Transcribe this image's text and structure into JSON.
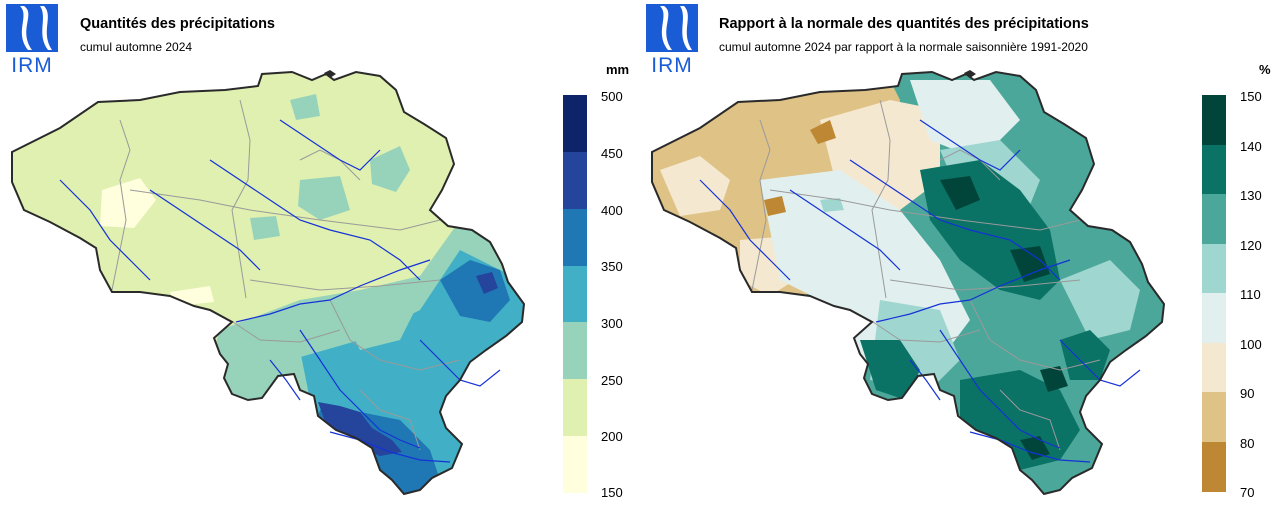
{
  "logo_text": "IRM",
  "left": {
    "title": "Quantités des précipitations",
    "subtitle": "cumul automne 2024",
    "unit": "mm",
    "legend": {
      "ticks": [
        "500",
        "450",
        "400",
        "350",
        "300",
        "250",
        "200",
        "150"
      ],
      "colors": [
        "#0e2468",
        "#25449c",
        "#1f78b4",
        "#41b0c6",
        "#97d3bb",
        "#dff0b0",
        "#ffffdd"
      ]
    }
  },
  "right": {
    "title": "Rapport à la normale des quantités des précipitations",
    "subtitle": "cumul automne 2024 par rapport à la normale saisonnière 1991-2020",
    "unit": "%",
    "legend": {
      "ticks": [
        "150",
        "140",
        "130",
        "120",
        "110",
        "100",
        "90",
        "80",
        "70"
      ],
      "colors": [
        "#01453a",
        "#0b7266",
        "#4aa79a",
        "#9fd6cf",
        "#e1f0ef",
        "#f5e8d1",
        "#dfc286",
        "#be8733"
      ]
    }
  },
  "colors": {
    "brand_blue": "#1a5bd6",
    "river": "#1432d6",
    "border": "#2a2a2a",
    "province_lines": "#9a9a9a"
  }
}
